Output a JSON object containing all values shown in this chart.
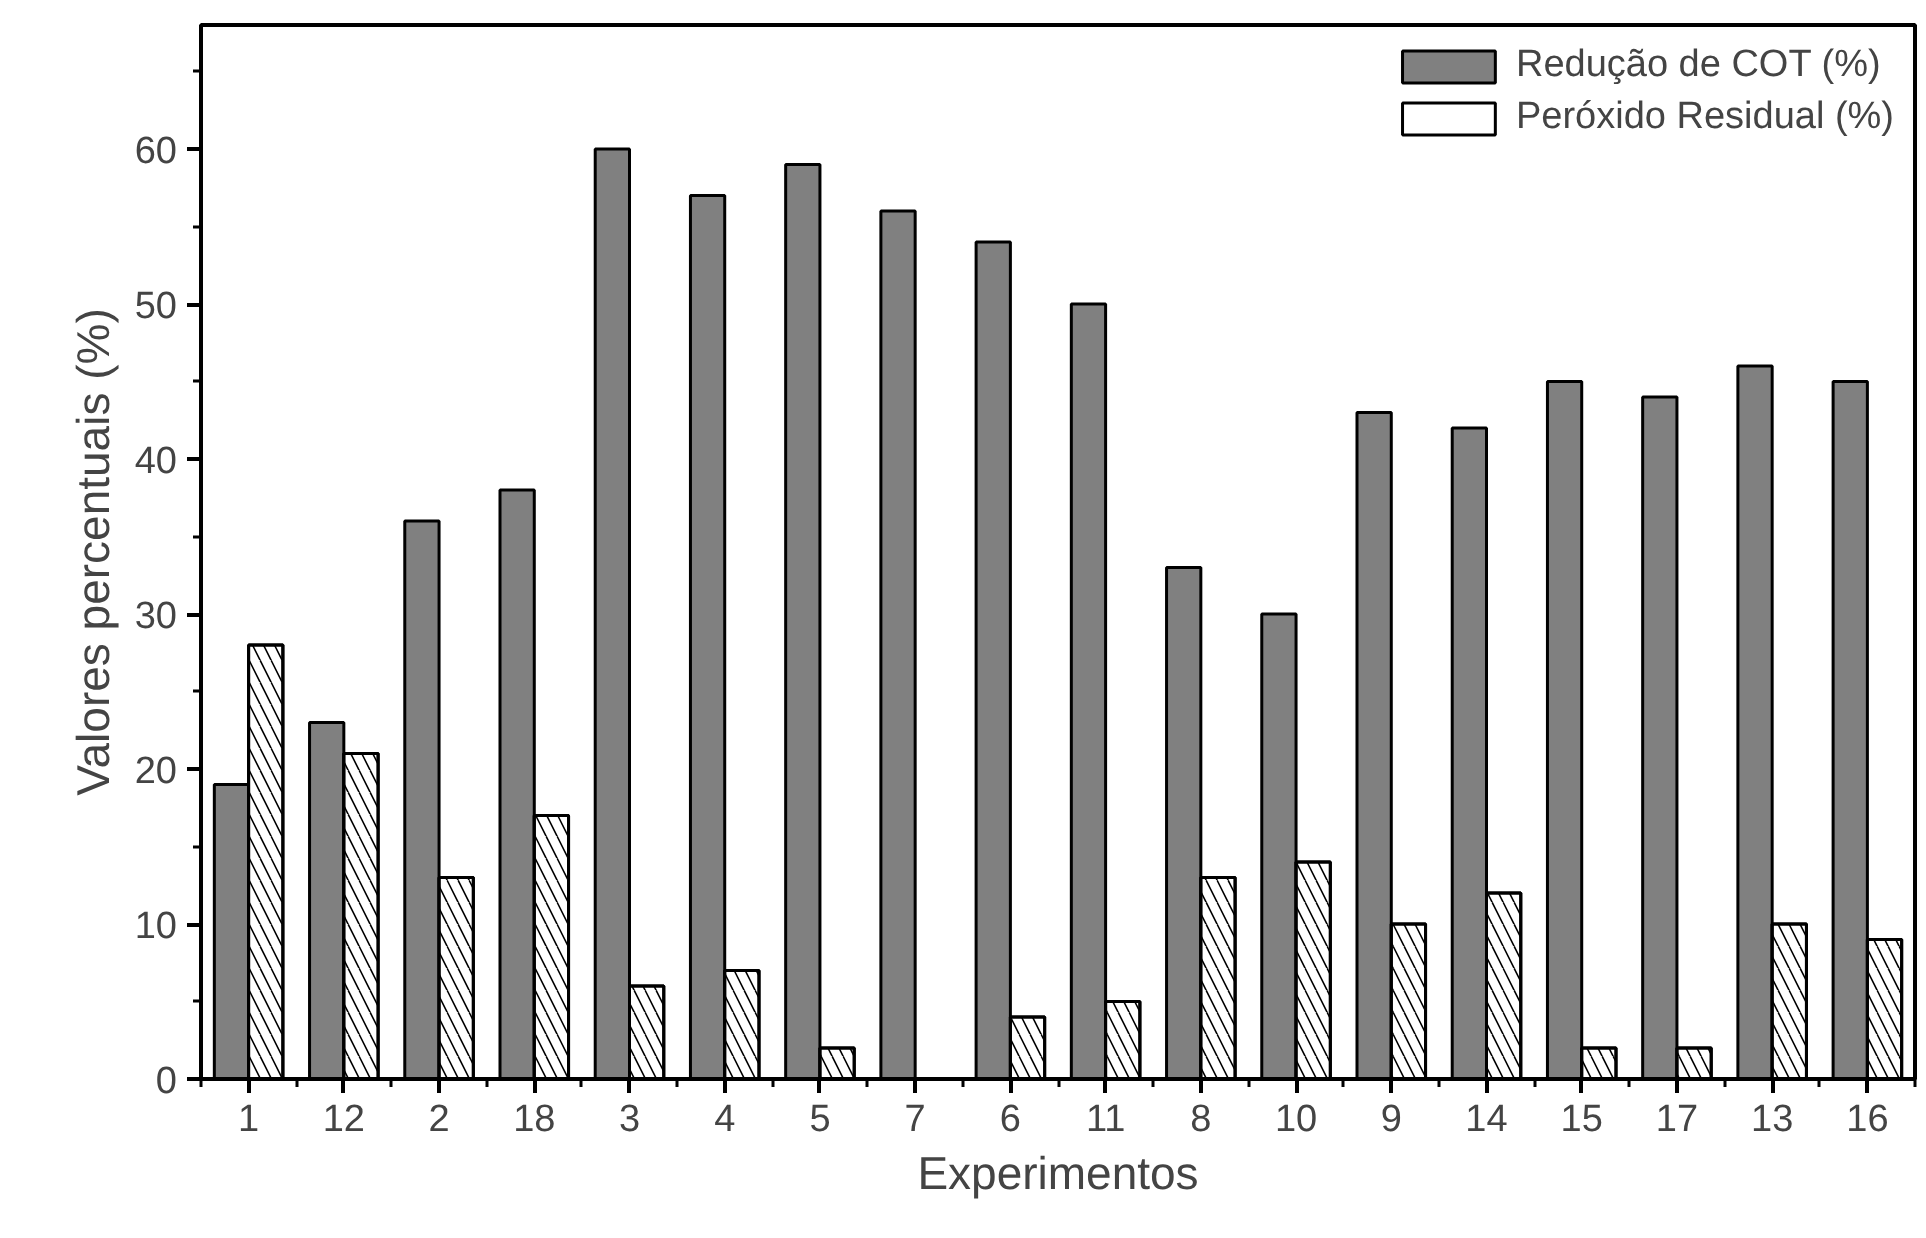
{
  "chart_data": {
    "type": "bar",
    "xlabel": "Experimentos",
    "ylabel": "Valores percentuais (%)",
    "categories": [
      "1",
      "12",
      "2",
      "18",
      "3",
      "4",
      "5",
      "7",
      "6",
      "11",
      "8",
      "10",
      "9",
      "14",
      "15",
      "17",
      "13",
      "16"
    ],
    "series": [
      {
        "name": "Redução de COT (%)",
        "color": "#808080",
        "values": [
          19,
          23,
          36,
          38,
          60,
          57,
          59,
          56,
          54,
          50,
          33,
          30,
          43,
          42,
          45,
          44,
          46,
          45
        ]
      },
      {
        "name": "Peróxido Residual (%)",
        "color": "#ffffff",
        "values": [
          28,
          21,
          13,
          17,
          6,
          7,
          2,
          null,
          4,
          5,
          13,
          14,
          10,
          12,
          2,
          2,
          10,
          9
        ]
      }
    ],
    "ylim": [
      0,
      68
    ],
    "yticks": [
      0,
      10,
      20,
      30,
      40,
      50,
      60
    ],
    "grid": false,
    "legend": "top right"
  }
}
